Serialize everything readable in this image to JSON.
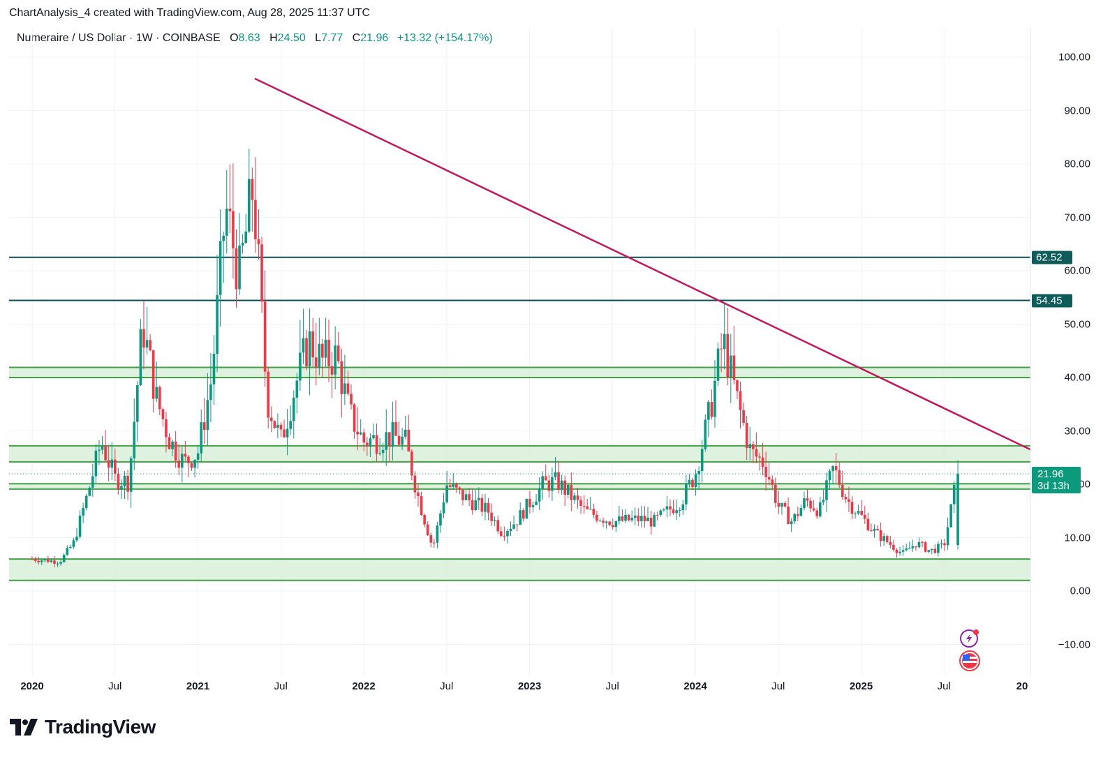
{
  "caption": "ChartAnalysis_4 created with TradingView.com, Aug 28, 2025 11:37 UTC",
  "legend": {
    "symbol": "Numeraire / US Dollar · 1W · COINBASE",
    "open_label": "O",
    "open": "8.63",
    "high_label": "H",
    "high": "24.50",
    "low_label": "L",
    "low": "7.77",
    "close_label": "C",
    "close": "21.96",
    "change": "+13.32 (+154.17%)"
  },
  "price_tags": {
    "resistance_high": "62.52",
    "resistance_low": "54.45",
    "last_price": "21.96",
    "countdown": "3d 13h"
  },
  "y_axis": [
    "100.00",
    "90.00",
    "80.00",
    "70.00",
    "60.00",
    "50.00",
    "40.00",
    "30.00",
    "20.00",
    "10.00",
    "0.00",
    "−10.00"
  ],
  "x_axis": [
    {
      "label": "2020",
      "year": true
    },
    {
      "label": "Jul",
      "year": false
    },
    {
      "label": "2021",
      "year": true
    },
    {
      "label": "Jul",
      "year": false
    },
    {
      "label": "2022",
      "year": true
    },
    {
      "label": "Jul",
      "year": false
    },
    {
      "label": "2023",
      "year": true
    },
    {
      "label": "Jul",
      "year": false
    },
    {
      "label": "2024",
      "year": true
    },
    {
      "label": "Jul",
      "year": false
    },
    {
      "label": "2025",
      "year": true
    },
    {
      "label": "Jul",
      "year": false
    },
    {
      "label": "20",
      "year": true
    }
  ],
  "brand": "TradingView",
  "colors": {
    "up": "#089981",
    "down": "#f23645",
    "trendline": "#c2185b",
    "zone_line": "#43a047",
    "zone_fill": "#d9efd9",
    "level_line": "#0d4f55",
    "tag_bg": "#0d5c5a",
    "last_tag_bg": "#0c9a7c"
  },
  "chart_data": {
    "type": "candlestick",
    "title": "Numeraire / US Dollar · 1W · COINBASE",
    "xlabel": "",
    "ylabel": "",
    "ylim": [
      -13,
      104
    ],
    "x_range": [
      "2020-01",
      "2025-10"
    ],
    "grid": true,
    "last": {
      "open": 8.63,
      "high": 24.5,
      "low": 7.77,
      "close": 21.96,
      "change": 13.32,
      "change_pct": 154.17
    },
    "horizontal_levels": [
      {
        "name": "resistance",
        "value": 62.52
      },
      {
        "name": "resistance",
        "value": 54.45
      }
    ],
    "zones": [
      {
        "from": 40.0,
        "to": 41.9
      },
      {
        "from": 24.2,
        "to": 27.2
      },
      {
        "from": 19.1,
        "to": 20.1
      },
      {
        "from": 2.0,
        "to": 6.0
      }
    ],
    "trendline": {
      "from": {
        "date": "2021-05",
        "value": 96.0
      },
      "to": {
        "date": "2025-10",
        "value": 26.5
      }
    },
    "price_path": [
      {
        "date": "2020-01",
        "close": 6.0
      },
      {
        "date": "2020-03",
        "close": 5.5
      },
      {
        "date": "2020-04",
        "close": 9.0
      },
      {
        "date": "2020-05",
        "close": 18.0
      },
      {
        "date": "2020-06",
        "close": 28.0
      },
      {
        "date": "2020-07",
        "close": 21.0
      },
      {
        "date": "2020-08",
        "close": 20.5
      },
      {
        "date": "2020-09",
        "close": 50.0
      },
      {
        "date": "2020-10",
        "close": 36.0
      },
      {
        "date": "2020-11",
        "close": 28.0
      },
      {
        "date": "2020-12",
        "close": 24.0
      },
      {
        "date": "2021-01",
        "close": 26.0
      },
      {
        "date": "2021-02",
        "close": 40.0
      },
      {
        "date": "2021-03",
        "close": 72.0
      },
      {
        "date": "2021-04",
        "close": 59.0
      },
      {
        "date": "2021-05",
        "close": 76.0
      },
      {
        "date": "2021-06",
        "close": 36.0
      },
      {
        "date": "2021-07",
        "close": 28.0
      },
      {
        "date": "2021-08",
        "close": 38.0
      },
      {
        "date": "2021-09",
        "close": 47.0
      },
      {
        "date": "2021-10",
        "close": 43.0
      },
      {
        "date": "2021-11",
        "close": 44.0
      },
      {
        "date": "2021-12",
        "close": 33.0
      },
      {
        "date": "2022-01",
        "close": 28.0
      },
      {
        "date": "2022-03",
        "close": 29.0
      },
      {
        "date": "2022-04",
        "close": 28.0
      },
      {
        "date": "2022-05",
        "close": 17.0
      },
      {
        "date": "2022-06",
        "close": 8.0
      },
      {
        "date": "2022-07",
        "close": 20.0
      },
      {
        "date": "2022-08",
        "close": 18.0
      },
      {
        "date": "2022-10",
        "close": 15.0
      },
      {
        "date": "2022-11",
        "close": 11.0
      },
      {
        "date": "2022-12",
        "close": 13.0
      },
      {
        "date": "2023-02",
        "close": 20.0
      },
      {
        "date": "2023-03",
        "close": 20.5
      },
      {
        "date": "2023-05",
        "close": 15.0
      },
      {
        "date": "2023-07",
        "close": 13.0
      },
      {
        "date": "2023-09",
        "close": 13.5
      },
      {
        "date": "2023-10",
        "close": 13.0
      },
      {
        "date": "2023-12",
        "close": 17.0
      },
      {
        "date": "2024-01",
        "close": 22.0
      },
      {
        "date": "2024-02",
        "close": 33.0
      },
      {
        "date": "2024-03",
        "close": 47.0
      },
      {
        "date": "2024-04",
        "close": 36.0
      },
      {
        "date": "2024-05",
        "close": 26.0
      },
      {
        "date": "2024-06",
        "close": 24.0
      },
      {
        "date": "2024-07",
        "close": 16.0
      },
      {
        "date": "2024-08",
        "close": 13.0
      },
      {
        "date": "2024-09",
        "close": 17.0
      },
      {
        "date": "2024-10",
        "close": 15.0
      },
      {
        "date": "2024-11",
        "close": 23.0
      },
      {
        "date": "2024-12",
        "close": 17.0
      },
      {
        "date": "2025-01",
        "close": 14.0
      },
      {
        "date": "2025-02",
        "close": 11.0
      },
      {
        "date": "2025-03",
        "close": 9.0
      },
      {
        "date": "2025-04",
        "close": 7.0
      },
      {
        "date": "2025-05",
        "close": 9.0
      },
      {
        "date": "2025-06",
        "close": 7.5
      },
      {
        "date": "2025-07",
        "close": 8.5
      },
      {
        "date": "2025-08",
        "close": 21.96
      }
    ]
  }
}
